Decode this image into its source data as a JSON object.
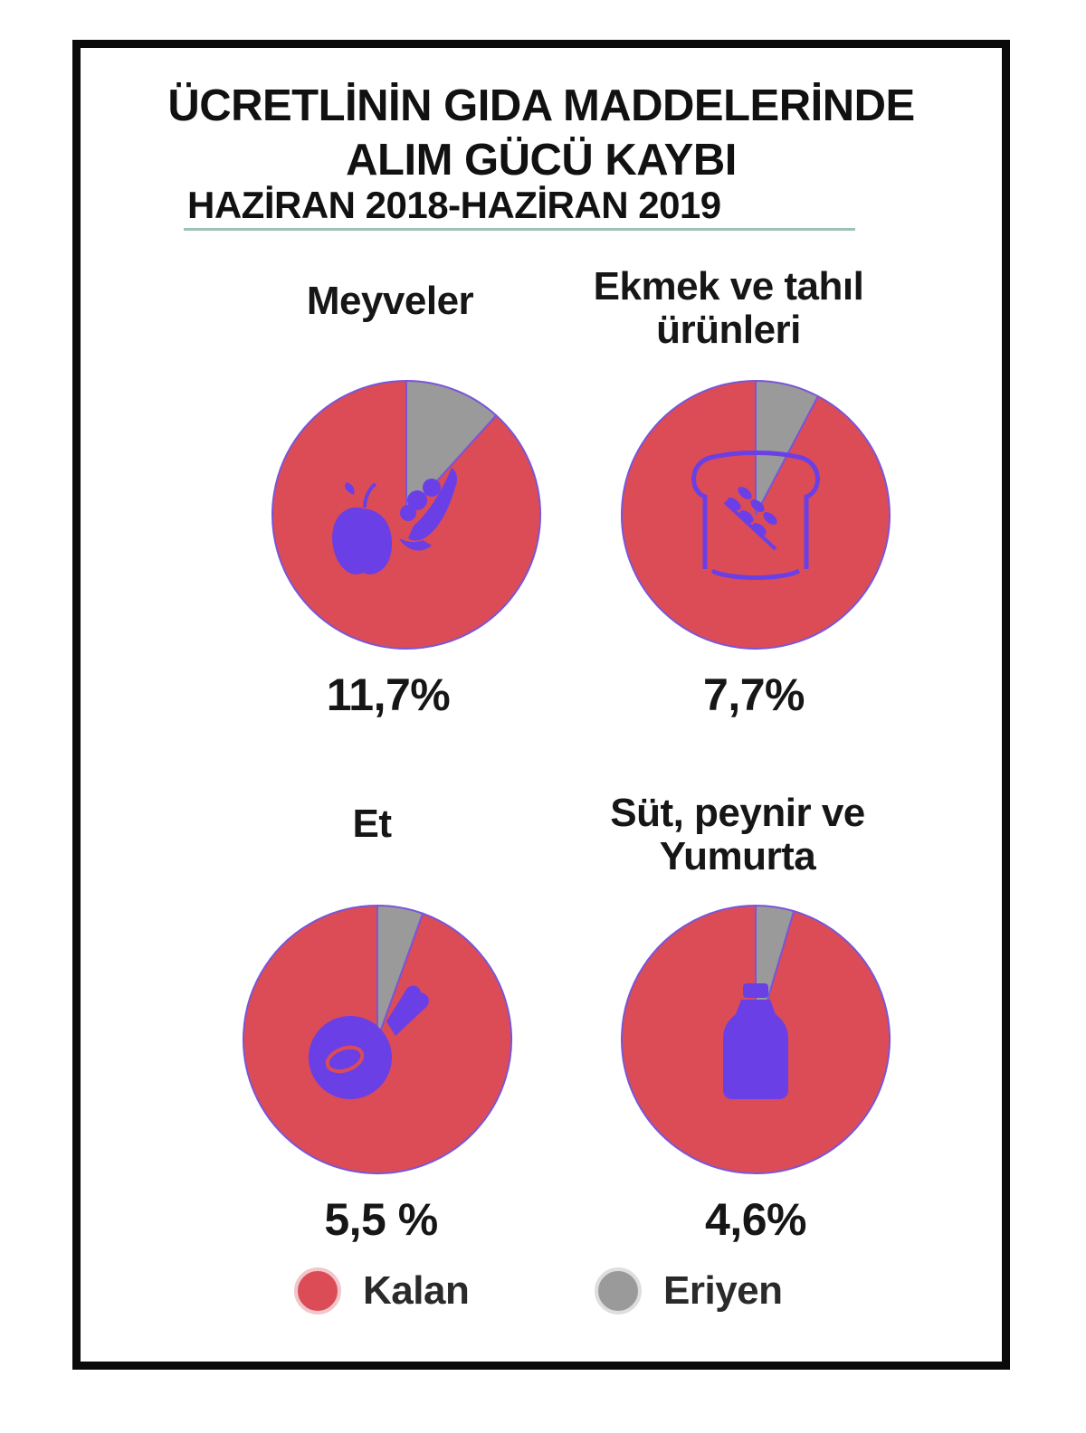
{
  "title": {
    "line1": "ÜCRETLİNİN GIDA MADDELERİNDE",
    "line2": "ALIM GÜCÜ KAYBI",
    "period": "HAZİRAN 2018-HAZİRAN 2019"
  },
  "colors": {
    "kalan": "#dc4c56",
    "eriyen": "#9a9a9a",
    "outline": "#7a55d8",
    "icon": "#6a3fe6"
  },
  "chart_data": [
    {
      "type": "pie",
      "title": "Meyveler",
      "value_label": "11,7%",
      "icon": "apple-banana-icon",
      "categories": [
        "Kalan",
        "Eriyen"
      ],
      "values": [
        88.3,
        11.7
      ]
    },
    {
      "type": "pie",
      "title": "Ekmek ve tahıl ürünleri",
      "value_label": "7,7%",
      "icon": "bread-wheat-icon",
      "categories": [
        "Kalan",
        "Eriyen"
      ],
      "values": [
        92.3,
        7.7
      ]
    },
    {
      "type": "pie",
      "title": "Et",
      "value_label": "5,5 %",
      "icon": "meat-leg-icon",
      "categories": [
        "Kalan",
        "Eriyen"
      ],
      "values": [
        94.5,
        5.5
      ]
    },
    {
      "type": "pie",
      "title": "Süt, peynir ve Yumurta",
      "value_label": "4,6%",
      "icon": "milk-bottle-icon",
      "categories": [
        "Kalan",
        "Eriyen"
      ],
      "values": [
        95.4,
        4.6
      ]
    }
  ],
  "legend": {
    "kalan_label": "Kalan",
    "eriyen_label": "Eriyen"
  }
}
